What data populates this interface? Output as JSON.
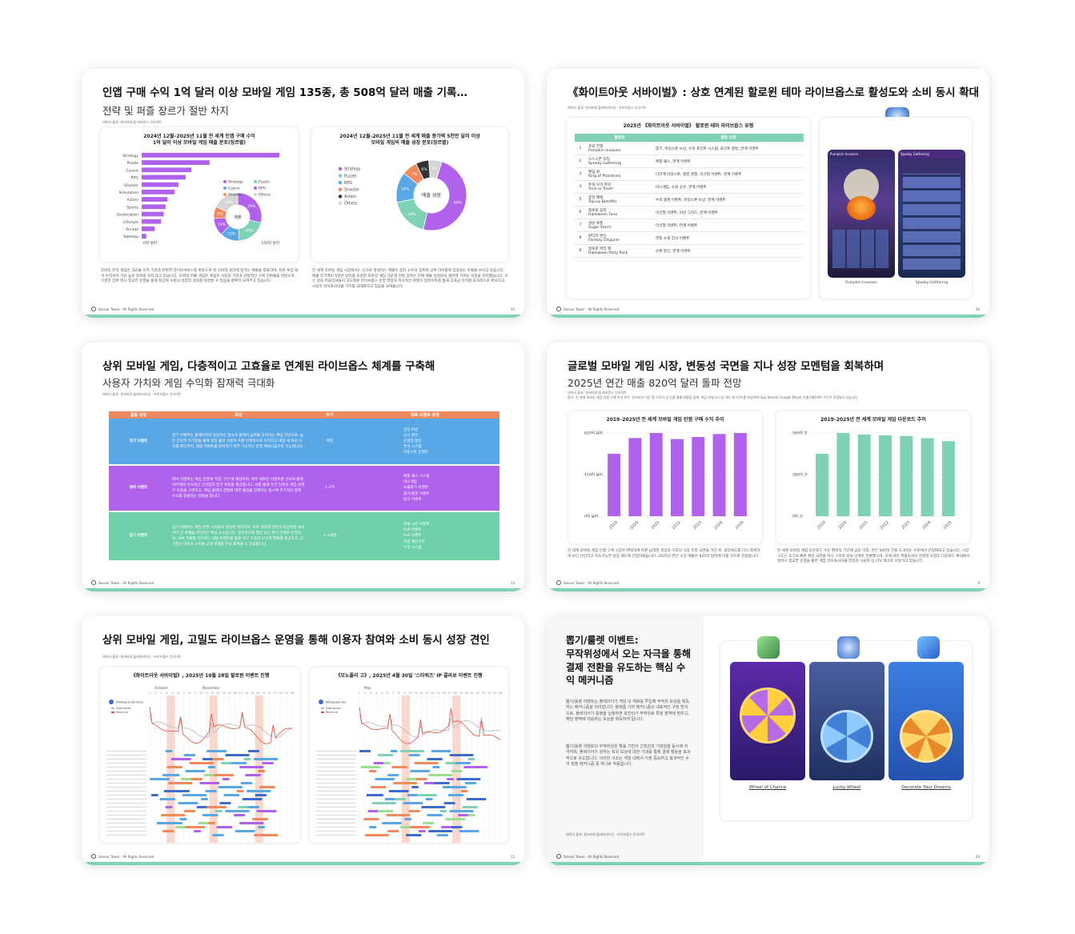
{
  "footer": {
    "brand": "Sensor Tower · All Rights Reserved"
  },
  "slide1": {
    "title": "인앱 구매 수익 1억 달러 이상 모바일 게임 135종, 총 508억 달러 매출 기록…",
    "subtitle": "전략 및 퍼즐 장르가 절반 차지",
    "source": "데이터 출처: 센서타워 앱 퍼포먼스 인사이트",
    "left_chart_title": "2024년 12월–2025년 11월 전 세계 인앱 구매 수익\n1억 달러 이상 모바일 게임 매출 분포(장르별)",
    "right_chart_title": "2024년 12월–2025년 11월 전 세계 매출 증가액 5천만 달러 이상\n모바일 게임의 매출 성장 분포(장르별)",
    "bar_axis_min": "0억 달러",
    "bar_axis_max": "150억 달러",
    "donut_center_left": "매출",
    "donut_center_right": "매출 성장",
    "left_text": "모바일 전략 게임은 고효율 유저 기반과 탄탄한 라이브서비스를 바탕으로 약 150억 달러에 달하는 매출을 창출하며, 자본 투입 대비 수익성이 가장 높은 장르로 자리 잡고 있습니다. 모바일 퍼즐 게임은 폭넓은 사용자 기반과 안정적인 구매 전환율을 바탕으로, 꾸준한 장르 역시 정교한 운영을 통해 최상위 수준의 성업적 성과를 달성할 수 있음을 명확히 보여주고 있습니다.",
    "right_text": "전 세계 모바일 게임 시장에서는 신규로 발생하는 매출이 점차 소수의 장르와 상위 타이틀에 집중되는 흐름을 보이고 있습니다. 매출 증가액이 5천만 달러를 초과한 모바일 게임 가운데 전략 장르는 전체 매출 성장분의 절반에 가까운 비중을 차지했습니다. 이는 성숙 퍼블리셔들이 고도화된 라이브옵스 운영 역량과 지속적인 콘텐츠 업데이트를 통해 고과금 유저를 효과적으로 확보하고, 사용자 라이프사이클 가치를 극대화하고 있음을 보여줍니다.",
    "page": "10"
  },
  "slide2": {
    "title": "《화이트아웃 서바이벌》: 상호 연계된 할로윈 테마 라이브옵스로 활성도와 소비 동시 확대",
    "source": "데이터 출처: 센서타워 플레이러이너 · 라이브옵스 인사이트",
    "table_title": "2025년 《화이트아웃 서바이벌》 할로윈 테마 라이브옵스 유형",
    "col_event": "활동명",
    "col_type": "활동 유형",
    "rows": [
      {
        "n": "1",
        "ko": "호박 전쟁",
        "en": "Pumpkin Invasion",
        "type": "뽑기, 마일스톤 보상, 누적 포인트 시스템, 포인트 랭킹, 연계 이벤트"
      },
      {
        "n": "2",
        "ko": "으스스한 모임",
        "en": "Spooky Gathering",
        "type": "복합 패스, 연계 이벤트"
      },
      {
        "n": "3",
        "ko": "팬텀 왕",
        "en": "King of Phantoms",
        "type": "다단계 미일스톤, 랭킹 경쟁, 이선형 이벤트, 연계 이벤트"
      },
      {
        "n": "4",
        "ko": "트릭 오어 트릿",
        "en": "Trick or Treat!",
        "type": "미니게임, 소셜 공유, 연계 이벤트"
      },
      {
        "n": "5",
        "ko": "충전 혜택",
        "en": "Top-up Benefits",
        "type": "누적 결제 이벤트, 마일스톤 보상, 연계 이벤트"
      },
      {
        "n": "6",
        "ko": "할로윈 음악",
        "en": "Halloween Tune",
        "type": "이선형 이벤트, 미션 그리드, 연계 이벤트"
      },
      {
        "n": "7",
        "ko": "설탕 폭풍",
        "en": "Sugar Storm",
        "type": "이선형 이벤트, 연계 이벤트"
      },
      {
        "n": "8",
        "ko": "판타지 변신",
        "en": "Fantasy Disguise",
        "type": "한정 소셜 장식 이벤트"
      },
      {
        "n": "9",
        "ko": "할로윈 파티 팩",
        "en": "Halloween Party Pack",
        "type": "순환 할인, 연계 이벤트"
      }
    ],
    "shot_left": "Pumpkin Invasion",
    "shot_right": "Spooky Gathering",
    "shot_label_left": "Pumpkin Invasion",
    "shot_label_right": "Spooky Gathering",
    "page": "34"
  },
  "slide3": {
    "title": "상위 모바일 게임, 다층적이고 고효율로 연계된 라이브옵스 체계를 구축해",
    "subtitle": "사용자 가치와 게임 수익화 잠재력 극대화",
    "source": "데이터 출처: 센서타워 플레이러이너 · 라이브옵스 인사이트",
    "headers": [
      "활동 유형",
      "특징",
      "주기",
      "대표 이벤트 유형"
    ],
    "rows": [
      {
        "type": "정기 이벤트",
        "desc": "정기 이벤트는 플레이어의 일상적인 접속과 플레이 습관을 유지하는 핵심 기반으로, 높은 빈도와 주기성을 통해 일일 활성 사용자 수를 안정적으로 유지하고 게임 내 자원 소모를 촉진하며, 대형 이벤트를 준비하기 위한 기초적인 운영 메커니즘으로 기능합니다.",
        "cycle": "매일",
        "events": "일일 미션\n상시 할인\n순환형 할인\n연속 시스템\n마일스톤 진행도"
      },
      {
        "type": "테마 이벤트",
        "desc": "테마 이벤트는 게임 운영에 '리듬 구간'에 해당하며, 매주 새로운 이벤트를 선보여 플레이어에게 지속적인 신선함과 참가 목표를 제공합니다. 이를 통해 주간 단위의 게임 콘텐츠 흐름을 구성하고, 핵심 플레이 경험에 대한 몰입을 강화하는 동시에 주기적인 결제 수요를 창출하는 역할을 합니다.",
        "cycle": "1–2주",
        "events": "배틀 패스 시스템\n미니게임\n보물찾기 이벤트\n뽑기/룰렛 이벤트\n빙고 이벤트"
      },
      {
        "type": "정기 이벤트",
        "desc": "정기 이벤트는 게임 운영 사이클의 정점에 해당하며, 서버 생태계 전반과 최상위권 플레이어 간 경쟁을 견인하는 핵심 요소입니다. 일반적으로 월간 또는 분기 단위로 운영되며, 서버 전체를 아우르는 대형 이벤트를 통해 최고 수준의 보상과 영예를 제공하고, 장기적인 라이프 사이클 고객 결제와 주요 회복을 도 작용합니다.",
        "cycle": "1–3개월",
        "events": "대형 시즌 이벤트\nPvP 이벤트\nPvE 이벤트\n연맹 챌린지전\n수집 시스템"
      }
    ],
    "page": "13"
  },
  "slide4": {
    "title": "글로벌 모바일 게임 시장, 변동성 국면을 지나 성장 모멘텀을 회복하며",
    "subtitle": "2025년 연간 매출 820억 달러 돌파 전망",
    "note": "데이터 출처: 센서타워 앱 퍼포먼스 인사이트\n참고: 전 세계 모바일 게임 인앱 구매 수익 추이. 센서타워 기준 앱 스토어 내 인앱 결제 매출을 집계, 게임 카테고리 및 기타 세그먼트를 포함하며 App Store와 Google Play의 인앱구매(IAP) 수익이 추정되어 있습니다.",
    "left_chart_title": "2019–2025년 전 세계 모바일 게임 인앱 구매 수익 추이",
    "right_chart_title": "2019–2025년 전 세계 모바일 게임 다운로드 추이",
    "left_ticks": [
      "820억 달러",
      "410억 달러",
      "0억 달러"
    ],
    "right_ticks": [
      "560억 건",
      "280억 건",
      "0억 건"
    ],
    "left_text": "전 세계 모바일 게임 인앱 구매 시장은 팬데믹에 따른 급격한 성장과 이후의 시장 조정 국면을 거친 뒤, 성장세도를 다시 회복하며 보다 건강하고 지속가능한 성장 궤도에 진입하였습니다. 2025년 연간 시장 매출은 820억 달러에 이를 것으로 전망됩니다.",
    "right_text": "전 세계 모바일 게임 다운로드 수는 팬데믹 기간에 급증 이후, 연간 500억 건을 초과하는 수준에서 안정화되고 있습니다. 시장 구도는 초기의 빠른 확장 국면을 지나 구조적 성숙 단계로 전환했으며, 이에 따라 퍼블리셔의 전략적 초점도 다운로드 확대에서 벗어나 정교한 운영을 통한 게임 라이프사이클 연장과 사용자 당 LTV 제고로 이동하고 있습니다.",
    "page": "9"
  },
  "slide5": {
    "title": "상위 모바일 게임, 고밀도 라이브옵스 운영을 통해 이용자 참여와 소비 동시 성장 견인",
    "source": "데이터 출처: 센서타워 플레이러이너 · 라이브옵스 인사이트",
    "left_title": "《화이트아웃 서바이벌》, 2025년 10월 28일 할로윈 이벤트 진행",
    "right_title": "《모노폴리 고》, 2025년 4월 30일 '스타워즈' IP 콜라보 이벤트 진행",
    "left_game": "Whiteout Survival",
    "right_game": "Monopoly Go",
    "legend_a": "Downloads",
    "legend_b": "Revenue",
    "left_months": [
      "October",
      "November"
    ],
    "right_months": [
      "May"
    ],
    "page": "12"
  },
  "slide6": {
    "title": "뽑기/룰렛 이벤트:\n무작위성에서 오는 자극을 통해 결제 전환을 유도하는 핵심 수익 메커니즘",
    "para1": "뽑기/룰렛 이벤트는 플레이어가 게임 내 재화를 투입해 무작위 보상을 획득하는 메커니즘을 의미합니다. 플랫폼 가챠 메커니즘의 대표적인 구현 방식으로, 플레이어가 룰렛을 실행하면 포인터가 무작위로 특정 영역에 멈추고, 해당 영역에 대응하는 보상을 획득하게 됩니다.",
    "para2": "뽑기/룰렛 이벤트의 무작위성은 확률 기반의 긴장감과 기대감을 동시에 자극하며, 플레이어가 원하는 희귀 보상에 대한 기대를 통해 결제 행동을 효과적으로 유도합니다. 이러한 구조는 게임 내에서 가장 중요하고 효과적인 수익 창출 메커니즘 중 하나로 작동합니다.",
    "source": "데이터 출처: 센서타워 플레이러이너 · 라이브옵스 인사이트",
    "captions": [
      "Wheel of Chance",
      "Lucky Wheel",
      "Decorate Your Dreams"
    ],
    "page": "24"
  },
  "colors": {
    "purple": "#b062ec",
    "green": "#7fd3b4",
    "orange": "#f08a5d",
    "blue": "#5aa7e6",
    "accent": "#7fd3b4"
  }
}
